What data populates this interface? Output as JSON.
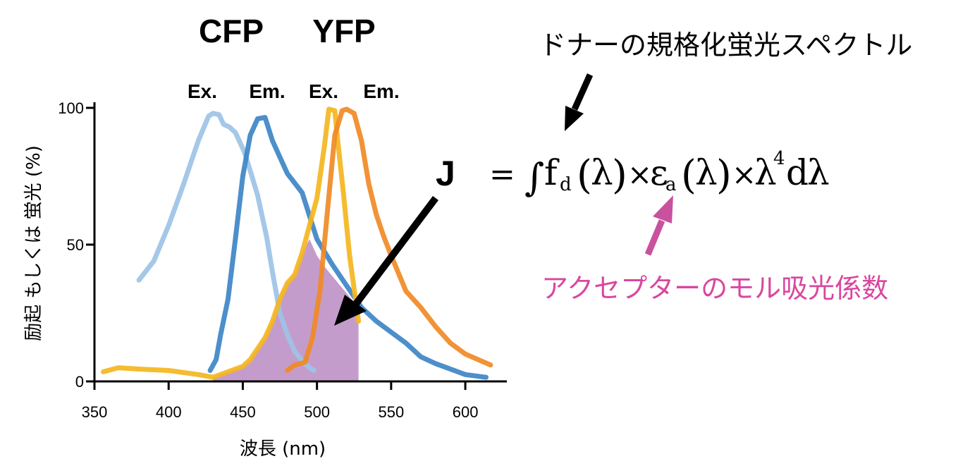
{
  "chart_data": {
    "type": "line",
    "title_left": "CFP",
    "title_right": "YFP",
    "peak_labels": [
      "Ex.",
      "Em.",
      "Ex.",
      "Em."
    ],
    "xlabel": "波長 (nm)",
    "ylabel": "励起 もしくは 蛍光 (%)",
    "xlim": [
      350,
      628
    ],
    "ylim": [
      0,
      100
    ],
    "xticks": [
      350,
      400,
      450,
      500,
      550,
      600
    ],
    "yticks": [
      0,
      50,
      100
    ],
    "grid": false,
    "legend": "none",
    "series": [
      {
        "key": "cfp_ex",
        "color": "#9dc3e6",
        "x": [
          380,
          390,
          400,
          410,
          420,
          427,
          430,
          434,
          437,
          441,
          445,
          451,
          455,
          460,
          466,
          470,
          475,
          480,
          485,
          490,
          495,
          498
        ],
        "y": [
          37,
          44,
          57,
          72,
          88,
          97,
          98,
          97.5,
          94,
          93,
          91,
          84,
          77,
          68,
          53,
          40,
          25,
          17,
          11,
          7.5,
          5,
          4
        ]
      },
      {
        "key": "cfp_em",
        "color": "#3d85c6",
        "x": [
          428,
          432,
          435,
          440,
          445,
          450,
          455,
          460,
          465,
          470,
          475,
          480,
          490,
          500,
          510,
          520,
          530,
          540,
          550,
          560,
          570,
          580,
          590,
          600,
          614
        ],
        "y": [
          4,
          8,
          17,
          30,
          52,
          75,
          90,
          96,
          96.5,
          88,
          82,
          76,
          69,
          52,
          43,
          35,
          27,
          22,
          18,
          14,
          9,
          6.5,
          4.5,
          2.5,
          1.5
        ]
      },
      {
        "key": "yfp_ex",
        "color": "#f4b61f",
        "x": [
          356,
          366,
          380,
          400,
          420,
          430,
          440,
          450,
          455,
          460,
          465,
          470,
          475,
          480,
          485,
          490,
          495,
          500,
          505,
          508,
          512,
          514,
          518,
          522,
          528
        ],
        "y": [
          3.5,
          5,
          4.5,
          4,
          2.5,
          1.5,
          3.5,
          5.5,
          8,
          12,
          16,
          22,
          30,
          36,
          39,
          47,
          57,
          67,
          86,
          99.5,
          99,
          88,
          68,
          46,
          22
        ]
      },
      {
        "key": "yfp_em",
        "color": "#f08a25",
        "x": [
          480,
          485,
          492,
          497,
          502,
          507,
          512,
          517,
          520,
          525,
          530,
          535,
          540,
          545,
          550,
          560,
          570,
          580,
          590,
          600,
          617
        ],
        "y": [
          4,
          6,
          7,
          16,
          33,
          62,
          90,
          99,
          99.5,
          98,
          88,
          72,
          61,
          53,
          46,
          33,
          27,
          20,
          14,
          10,
          6
        ]
      }
    ],
    "overlap_area": {
      "color": "#c49ccc",
      "x": [
        430,
        440,
        450,
        455,
        460,
        465,
        470,
        475,
        480,
        485,
        490,
        495,
        500,
        505,
        508,
        528,
        528,
        430
      ],
      "y": [
        1.5,
        3.5,
        5.5,
        8,
        12,
        16,
        22,
        30,
        36,
        39,
        47,
        52,
        46,
        42,
        40,
        27,
        0,
        0
      ]
    },
    "annotations": {
      "donor_label": "ドナーの規格化蛍光スペクトル",
      "acceptor_label": "アクセプターのモル吸光係数",
      "acceptor_color": "#d9479f",
      "overlap_symbol": "J"
    }
  }
}
